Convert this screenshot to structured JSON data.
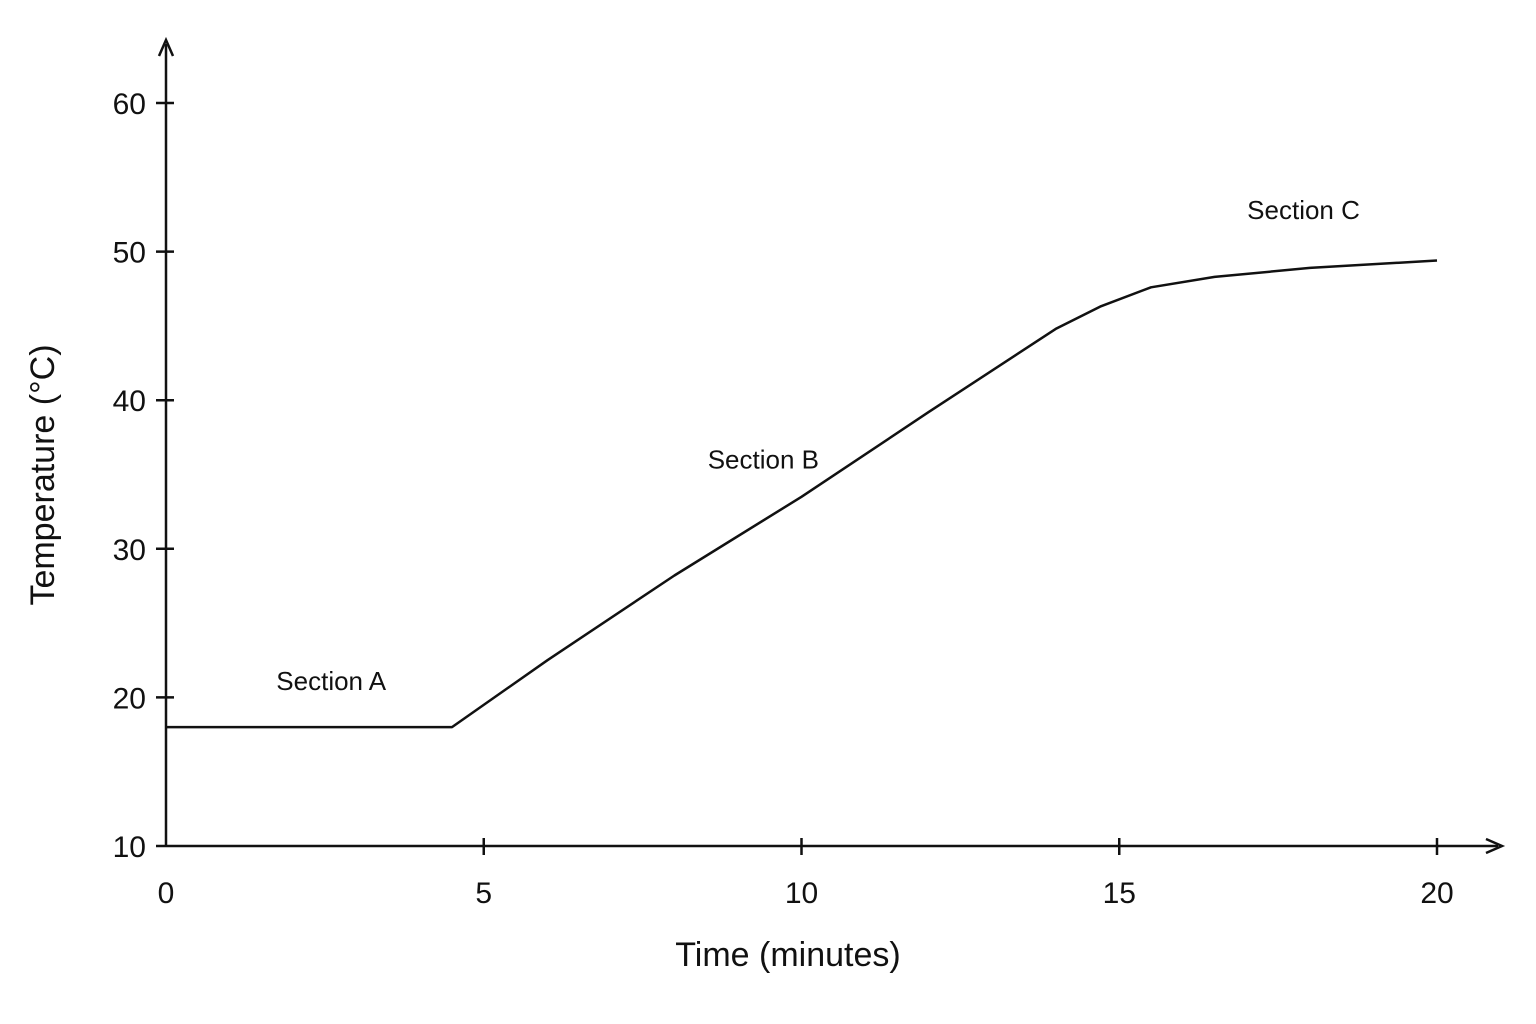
{
  "chart_data": {
    "type": "line",
    "title": "",
    "xlabel": "Time (minutes)",
    "ylabel": "Temperature (°C)",
    "xlim": [
      0,
      20
    ],
    "ylim": [
      10,
      60
    ],
    "x_ticks": [
      0,
      5,
      10,
      15,
      20
    ],
    "y_ticks": [
      10,
      20,
      30,
      40,
      50,
      60
    ],
    "grid": false,
    "series": [
      {
        "x": [
          0,
          4.5,
          6,
          8,
          10,
          12,
          14,
          14.7,
          15.5,
          16.5,
          18,
          20
        ],
        "y": [
          18,
          18,
          22.5,
          28.2,
          33.5,
          39.2,
          44.8,
          46.3,
          47.6,
          48.3,
          48.9,
          49.4
        ]
      }
    ],
    "annotations": [
      {
        "text": "Section A",
        "x": 2.6,
        "y": 20.5
      },
      {
        "text": "Section B",
        "x": 9.4,
        "y": 35.4
      },
      {
        "text": "Section C",
        "x": 17.9,
        "y": 52.2
      }
    ]
  }
}
